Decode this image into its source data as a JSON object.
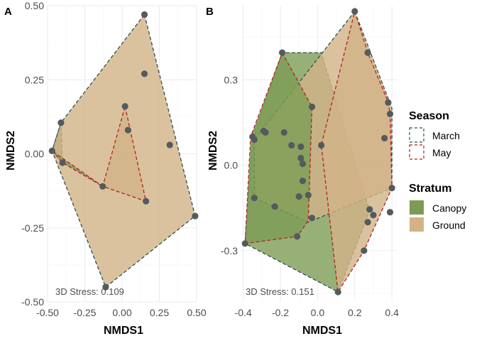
{
  "chart_data": [
    {
      "type": "scatter",
      "panel": "A",
      "xlabel": "NMDS1",
      "ylabel": "NMDS2",
      "stress_label": "3D Stress: 0.109",
      "xlim": [
        -0.5,
        0.5
      ],
      "ylim": [
        -0.5,
        0.5
      ],
      "x_ticks": [
        -0.5,
        -0.25,
        0,
        0.25,
        0.5
      ],
      "x_tick_labels": [
        "-0.50",
        "-0.25",
        "0.00",
        "0.25",
        "0.50"
      ],
      "y_ticks": [
        -0.5,
        -0.25,
        0,
        0.25,
        0.5
      ],
      "y_tick_labels": [
        "-0.50",
        "-0.25",
        "0.00",
        "0.25",
        "0.50"
      ],
      "points": [
        {
          "x": 0.15,
          "y": 0.47
        },
        {
          "x": 0.15,
          "y": 0.27
        },
        {
          "x": 0.02,
          "y": 0.16
        },
        {
          "x": 0.04,
          "y": 0.08
        },
        {
          "x": 0.32,
          "y": 0.03
        },
        {
          "x": -0.41,
          "y": 0.105
        },
        {
          "x": -0.47,
          "y": 0.01
        },
        {
          "x": -0.4,
          "y": -0.03
        },
        {
          "x": -0.13,
          "y": -0.11
        },
        {
          "x": 0.16,
          "y": -0.16
        },
        {
          "x": 0.49,
          "y": -0.21
        },
        {
          "x": -0.11,
          "y": -0.45
        }
      ],
      "hulls": [
        {
          "season": "March",
          "stratum": "Canopy",
          "points": [
            [
              -0.47,
              0.01
            ],
            [
              -0.41,
              0.105
            ],
            [
              -0.4,
              -0.03
            ]
          ]
        },
        {
          "season": "March",
          "stratum": "Ground",
          "points": [
            [
              0.15,
              0.47
            ],
            [
              0.49,
              -0.21
            ],
            [
              -0.11,
              -0.45
            ],
            [
              -0.47,
              0.01
            ],
            [
              -0.41,
              0.105
            ]
          ]
        },
        {
          "season": "May",
          "stratum": "Canopy",
          "points": [
            [
              -0.47,
              0.01
            ],
            [
              -0.4,
              -0.03
            ],
            [
              -0.13,
              -0.11
            ]
          ]
        },
        {
          "season": "May",
          "stratum": "Ground",
          "points": [
            [
              0.02,
              0.16
            ],
            [
              0.16,
              -0.16
            ],
            [
              -0.13,
              -0.11
            ]
          ]
        }
      ]
    },
    {
      "type": "scatter",
      "panel": "B",
      "xlabel": "NMDS1",
      "ylabel": "NMDS2",
      "stress_label": "3D Stress: 0.151",
      "xlim": [
        -0.41,
        0.43
      ],
      "ylim": [
        -0.48,
        0.56
      ],
      "x_ticks": [
        -0.4,
        -0.2,
        0,
        0.2,
        0.4
      ],
      "x_tick_labels": [
        "-0.4",
        "-0.2",
        "0.0",
        "0.2",
        "0.4"
      ],
      "y_ticks": [
        -0.3,
        0,
        0.3
      ],
      "y_tick_labels": [
        "-0.3",
        "0.0",
        "0.3"
      ],
      "points": [
        {
          "x": 0.2,
          "y": 0.54
        },
        {
          "x": 0.27,
          "y": 0.395
        },
        {
          "x": -0.19,
          "y": 0.395
        },
        {
          "x": 0.38,
          "y": 0.22
        },
        {
          "x": -0.03,
          "y": 0.205
        },
        {
          "x": 0.39,
          "y": 0.18
        },
        {
          "x": 0.36,
          "y": 0.095
        },
        {
          "x": -0.29,
          "y": 0.12
        },
        {
          "x": -0.28,
          "y": 0.115
        },
        {
          "x": -0.18,
          "y": 0.115
        },
        {
          "x": -0.35,
          "y": 0.1
        },
        {
          "x": -0.34,
          "y": 0.09
        },
        {
          "x": -0.14,
          "y": 0.07
        },
        {
          "x": -0.09,
          "y": 0.065
        },
        {
          "x": 0.02,
          "y": 0.07
        },
        {
          "x": -0.09,
          "y": 0.025
        },
        {
          "x": -0.08,
          "y": 0.005
        },
        {
          "x": -0.08,
          "y": -0.055
        },
        {
          "x": -0.34,
          "y": -0.115
        },
        {
          "x": -0.1,
          "y": -0.11
        },
        {
          "x": -0.05,
          "y": -0.105
        },
        {
          "x": -0.23,
          "y": -0.145
        },
        {
          "x": 0.4,
          "y": -0.08
        },
        {
          "x": 0.28,
          "y": -0.155
        },
        {
          "x": 0.3,
          "y": -0.175
        },
        {
          "x": 0.39,
          "y": -0.165
        },
        {
          "x": 0.27,
          "y": -0.2
        },
        {
          "x": -0.03,
          "y": -0.185
        },
        {
          "x": -0.11,
          "y": -0.25
        },
        {
          "x": 0.25,
          "y": -0.3
        },
        {
          "x": -0.39,
          "y": -0.275
        },
        {
          "x": 0.11,
          "y": -0.445
        }
      ],
      "hulls": [
        {
          "season": "March",
          "stratum": "Canopy",
          "points": [
            [
              -0.19,
              0.395
            ],
            [
              -0.35,
              0.1
            ],
            [
              -0.39,
              -0.275
            ],
            [
              0.11,
              -0.445
            ],
            [
              0.28,
              -0.16
            ],
            [
              0.02,
              0.395
            ]
          ]
        },
        {
          "season": "March",
          "stratum": "Ground",
          "points": [
            [
              0.2,
              0.54
            ],
            [
              0.4,
              0.2
            ],
            [
              0.4,
              -0.08
            ],
            [
              -0.05,
              -0.2
            ],
            [
              -0.34,
              -0.115
            ],
            [
              -0.34,
              0.09
            ]
          ]
        },
        {
          "season": "May",
          "stratum": "Ground",
          "points": [
            [
              0.2,
              0.54
            ],
            [
              0.27,
              0.395
            ],
            [
              0.38,
              0.22
            ],
            [
              0.39,
              0.18
            ],
            [
              0.4,
              -0.08
            ],
            [
              0.25,
              -0.3
            ],
            [
              0.11,
              -0.445
            ],
            [
              0.02,
              0.07
            ]
          ]
        },
        {
          "season": "May",
          "stratum": "Canopy",
          "points": [
            [
              -0.19,
              0.395
            ],
            [
              -0.03,
              0.205
            ],
            [
              -0.05,
              -0.195
            ],
            [
              -0.11,
              -0.25
            ],
            [
              -0.39,
              -0.275
            ],
            [
              -0.36,
              0.1
            ]
          ]
        }
      ]
    }
  ],
  "legend": {
    "season_title": "Season",
    "season_items": [
      {
        "label": "March",
        "color": "#2f4f4f"
      },
      {
        "label": "May",
        "color": "#b22222"
      }
    ],
    "stratum_title": "Stratum",
    "stratum_items": [
      {
        "label": "Canopy",
        "color": "#7c9c55"
      },
      {
        "label": "Ground",
        "color": "#d2b387"
      }
    ]
  },
  "colors": {
    "canopy_fill": "#7c9c55",
    "ground_fill": "#d2b387",
    "march_line": "#2f4f4f",
    "may_line": "#b22222",
    "point": "#555a5e"
  }
}
